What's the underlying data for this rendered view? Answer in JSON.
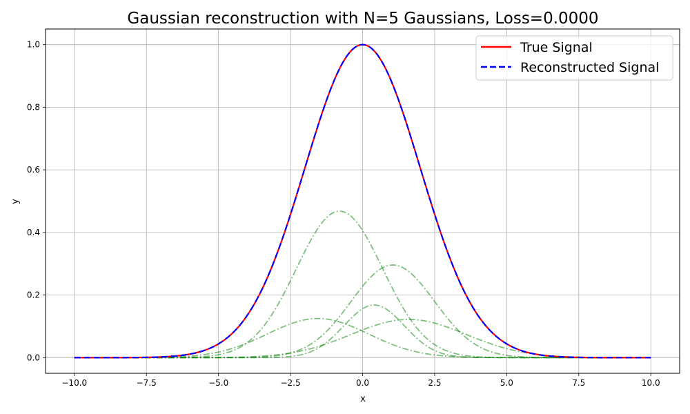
{
  "chart_data": {
    "type": "line",
    "title": "Gaussian reconstruction with N=5 Gaussians, Loss=0.0000",
    "xlabel": "x",
    "ylabel": "y",
    "xlim": [
      -11,
      11
    ],
    "ylim": [
      -0.05,
      1.05
    ],
    "xticks": [
      -10.0,
      -7.5,
      -5.0,
      -2.5,
      0.0,
      2.5,
      5.0,
      7.5,
      10.0
    ],
    "xtick_labels": [
      "−10.0",
      "−7.5",
      "−5.0",
      "−2.5",
      "0.0",
      "2.5",
      "5.0",
      "7.5",
      "10.0"
    ],
    "yticks": [
      0.0,
      0.2,
      0.4,
      0.6,
      0.8,
      1.0
    ],
    "ytick_labels": [
      "0.0",
      "0.2",
      "0.4",
      "0.6",
      "0.8",
      "1.0"
    ],
    "grid": true,
    "legend_position": "top-right",
    "series": [
      {
        "name": "True Signal",
        "style": "solid",
        "color": "#ff0000",
        "formula": "exp(-x^2/8)",
        "x": [
          -10,
          -9,
          -8,
          -7,
          -6,
          -5,
          -4.5,
          -4,
          -3.5,
          -3,
          -2.5,
          -2,
          -1.5,
          -1,
          -0.5,
          0,
          0.5,
          1,
          1.5,
          2,
          2.5,
          3,
          3.5,
          4,
          4.5,
          5,
          6,
          7,
          8,
          9,
          10
        ],
        "values": [
          0.0,
          0.0,
          0.0,
          0.002,
          0.011,
          0.044,
          0.08,
          0.135,
          0.216,
          0.325,
          0.458,
          0.607,
          0.755,
          0.882,
          0.969,
          1.0,
          0.969,
          0.882,
          0.755,
          0.607,
          0.458,
          0.325,
          0.216,
          0.135,
          0.08,
          0.044,
          0.011,
          0.002,
          0.0,
          0.0,
          0.0
        ]
      },
      {
        "name": "Reconstructed Signal",
        "style": "dashed",
        "color": "#0000ff",
        "formula": "sum of components",
        "x": [
          -10,
          -9,
          -8,
          -7,
          -6,
          -5,
          -4.5,
          -4,
          -3.5,
          -3,
          -2.5,
          -2,
          -1.5,
          -1,
          -0.5,
          0,
          0.5,
          1,
          1.5,
          2,
          2.5,
          3,
          3.5,
          4,
          4.5,
          5,
          6,
          7,
          8,
          9,
          10
        ],
        "values": [
          0.0,
          0.0,
          0.0,
          0.002,
          0.011,
          0.044,
          0.08,
          0.135,
          0.216,
          0.325,
          0.458,
          0.607,
          0.755,
          0.882,
          0.969,
          1.0,
          0.969,
          0.882,
          0.755,
          0.607,
          0.458,
          0.325,
          0.216,
          0.135,
          0.08,
          0.044,
          0.011,
          0.002,
          0.0,
          0.0,
          0.0
        ]
      }
    ],
    "components": [
      {
        "amplitude": 0.468,
        "mean": -0.8,
        "sigma": 1.5,
        "color": "#008000",
        "style": "dashdot"
      },
      {
        "amplitude": 0.296,
        "mean": 1.05,
        "sigma": 1.45,
        "color": "#008000",
        "style": "dashdot"
      },
      {
        "amplitude": 0.168,
        "mean": 0.4,
        "sigma": 1.05,
        "color": "#008000",
        "style": "dashdot"
      },
      {
        "amplitude": 0.125,
        "mean": -1.55,
        "sigma": 1.75,
        "color": "#008000",
        "style": "dashdot"
      },
      {
        "amplitude": 0.122,
        "mean": 1.6,
        "sigma": 2.0,
        "color": "#008000",
        "style": "dashdot"
      }
    ]
  }
}
